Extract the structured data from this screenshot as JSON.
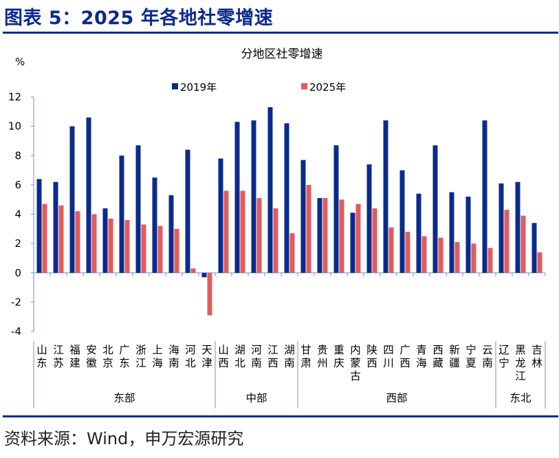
{
  "header": {
    "title": "图表 5：2025 年各地社零增速",
    "source": "资料来源：Wind，申万宏源研究"
  },
  "colors": {
    "accent": "#0b2a8c",
    "series_2019": "#0a2b8e",
    "series_2025": "#e35b5b"
  },
  "chart_data": {
    "type": "bar",
    "title": "分地区社零增速",
    "ylabel": "%",
    "ylim": [
      -4,
      12
    ],
    "yticks": [
      -4,
      -2,
      0,
      2,
      4,
      6,
      8,
      10,
      12
    ],
    "legend_position": "top-center",
    "categories": [
      "山东",
      "江苏",
      "福建",
      "安徽",
      "北京",
      "广东",
      "浙江",
      "上海",
      "海南",
      "河北",
      "天津",
      "山西",
      "湖北",
      "河南",
      "江西",
      "湖南",
      "甘肃",
      "贵州",
      "重庆",
      "内蒙古",
      "陕西",
      "四川",
      "广西",
      "青海",
      "西藏",
      "新疆",
      "宁夏",
      "云南",
      "辽宁",
      "黑龙江",
      "吉林"
    ],
    "series": [
      {
        "name": "2019年",
        "values": [
          6.4,
          6.2,
          10.0,
          10.6,
          4.4,
          8.0,
          8.7,
          6.5,
          5.3,
          8.4,
          -0.3,
          7.8,
          10.3,
          10.4,
          11.3,
          10.2,
          7.7,
          5.1,
          8.7,
          4.1,
          7.4,
          10.4,
          7.0,
          5.4,
          8.7,
          5.5,
          5.2,
          10.4,
          6.1,
          6.2,
          3.4
        ]
      },
      {
        "name": "2025年",
        "values": [
          4.7,
          4.6,
          4.2,
          4.0,
          3.7,
          3.6,
          3.3,
          3.2,
          3.0,
          0.3,
          -2.9,
          5.6,
          5.6,
          5.1,
          4.4,
          2.7,
          6.0,
          5.1,
          5.0,
          4.7,
          4.4,
          3.1,
          2.8,
          2.5,
          2.4,
          2.1,
          2.0,
          1.7,
          4.3,
          3.9,
          1.4
        ]
      }
    ],
    "regions": [
      {
        "name": "东部",
        "count": 11
      },
      {
        "name": "中部",
        "count": 5
      },
      {
        "name": "西部",
        "count": 12
      },
      {
        "name": "东北",
        "count": 3
      }
    ]
  }
}
